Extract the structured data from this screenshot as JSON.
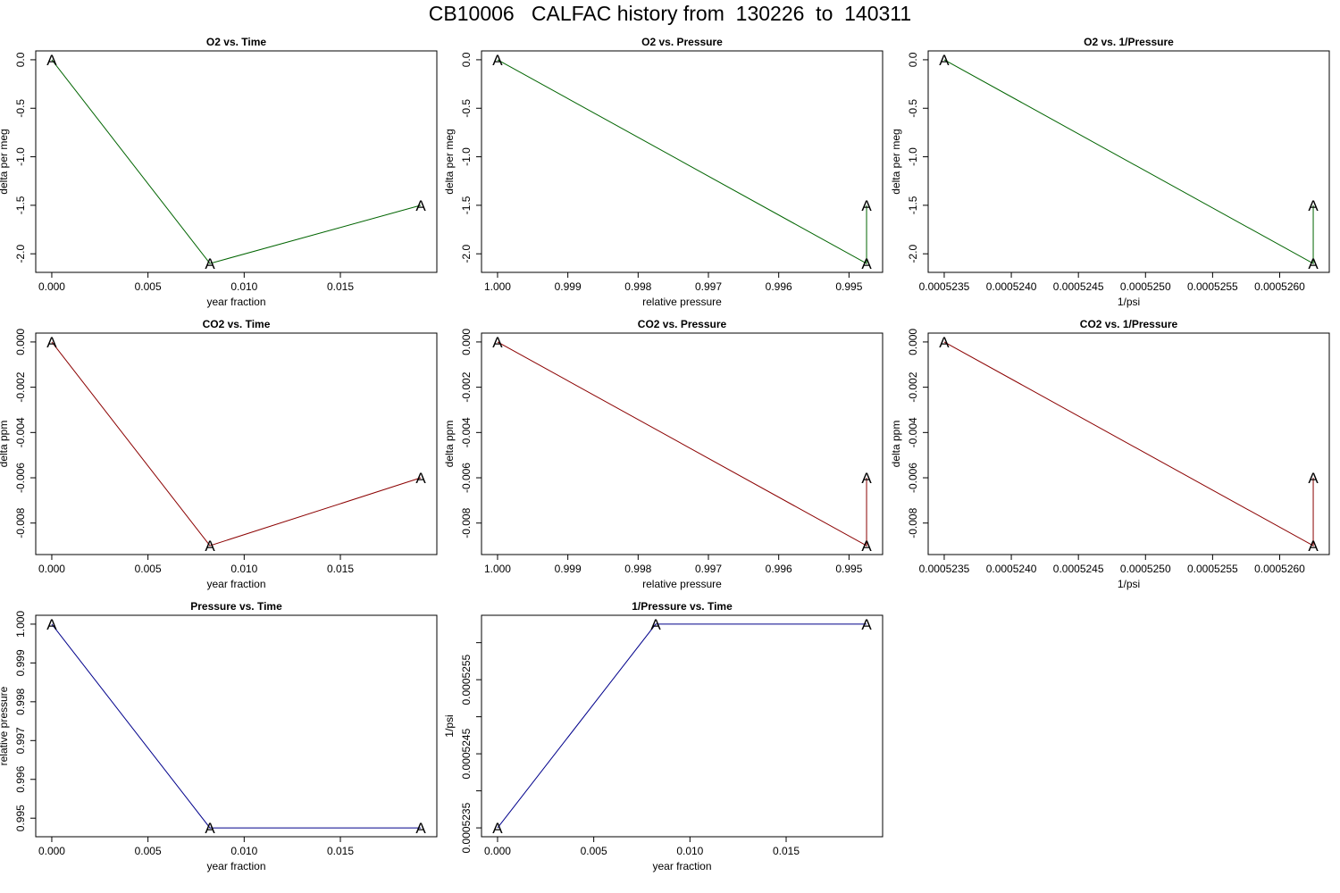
{
  "title": "CB10006   CALFAC history from  130226  to  140311",
  "chart_data": [
    {
      "type": "line",
      "title": "O2 vs. Time",
      "xlabel": "year fraction",
      "ylabel": "delta per meg",
      "color": "#006400",
      "marker": "A",
      "x": [
        0.0,
        0.00822,
        0.01918
      ],
      "y": [
        0.0,
        -2.1,
        -1.5
      ],
      "xlim": [
        0.0,
        0.01918
      ],
      "ylim": [
        -2.1,
        0.0
      ],
      "xreverse": false,
      "xticks": [
        0.0,
        0.005,
        0.01,
        0.015
      ],
      "xtick_labels": [
        "0.000",
        "0.005",
        "0.010",
        "0.015"
      ],
      "yticks": [
        0.0,
        -0.5,
        -1.0,
        -1.5,
        -2.0
      ],
      "ytick_labels": [
        "0.0",
        "-0.5",
        "-1.0",
        "-1.5",
        "-2.0"
      ]
    },
    {
      "type": "line",
      "title": "O2 vs. Pressure",
      "xlabel": "relative pressure",
      "ylabel": "delta per meg",
      "color": "#006400",
      "marker": "A",
      "x": [
        1.0,
        0.99475,
        0.99475
      ],
      "y": [
        0.0,
        -2.1,
        -1.5
      ],
      "xlim": [
        0.99475,
        1.0
      ],
      "ylim": [
        -2.1,
        0.0
      ],
      "xreverse": true,
      "xticks": [
        1.0,
        0.999,
        0.998,
        0.997,
        0.996,
        0.995
      ],
      "xtick_labels": [
        "1.000",
        "0.999",
        "0.998",
        "0.997",
        "0.996",
        "0.995"
      ],
      "yticks": [
        0.0,
        -0.5,
        -1.0,
        -1.5,
        -2.0
      ],
      "ytick_labels": [
        "0.0",
        "-0.5",
        "-1.0",
        "-1.5",
        "-2.0"
      ]
    },
    {
      "type": "line",
      "title": "O2 vs. 1/Pressure",
      "xlabel": "1/psi",
      "ylabel": "delta per meg",
      "color": "#006400",
      "marker": "A",
      "x": [
        0.0005235,
        0.00052625,
        0.00052625
      ],
      "y": [
        0.0,
        -2.1,
        -1.5
      ],
      "xlim": [
        0.0005235,
        0.00052625
      ],
      "ylim": [
        -2.1,
        0.0
      ],
      "xreverse": false,
      "xticks": [
        0.0005235,
        0.000524,
        0.0005245,
        0.000525,
        0.0005255,
        0.000526
      ],
      "xtick_labels": [
        "0.0005235",
        "0.0005240",
        "0.0005245",
        "0.0005250",
        "0.0005255",
        "0.0005260"
      ],
      "yticks": [
        0.0,
        -0.5,
        -1.0,
        -1.5,
        -2.0
      ],
      "ytick_labels": [
        "0.0",
        "-0.5",
        "-1.0",
        "-1.5",
        "-2.0"
      ]
    },
    {
      "type": "line",
      "title": "CO2 vs. Time",
      "xlabel": "year fraction",
      "ylabel": "delta ppm",
      "color": "#8B0000",
      "marker": "A",
      "x": [
        0.0,
        0.00822,
        0.01918
      ],
      "y": [
        0.0,
        -0.009,
        -0.006
      ],
      "xlim": [
        0.0,
        0.01918
      ],
      "ylim": [
        -0.009,
        0.0
      ],
      "xreverse": false,
      "xticks": [
        0.0,
        0.005,
        0.01,
        0.015
      ],
      "xtick_labels": [
        "0.000",
        "0.005",
        "0.010",
        "0.015"
      ],
      "yticks": [
        0.0,
        -0.002,
        -0.004,
        -0.006,
        -0.008
      ],
      "ytick_labels": [
        "0.000",
        "-0.002",
        "-0.004",
        "-0.006",
        "-0.008"
      ]
    },
    {
      "type": "line",
      "title": "CO2 vs. Pressure",
      "xlabel": "relative pressure",
      "ylabel": "delta ppm",
      "color": "#8B0000",
      "marker": "A",
      "x": [
        1.0,
        0.99475,
        0.99475
      ],
      "y": [
        0.0,
        -0.009,
        -0.006
      ],
      "xlim": [
        0.99475,
        1.0
      ],
      "ylim": [
        -0.009,
        0.0
      ],
      "xreverse": true,
      "xticks": [
        1.0,
        0.999,
        0.998,
        0.997,
        0.996,
        0.995
      ],
      "xtick_labels": [
        "1.000",
        "0.999",
        "0.998",
        "0.997",
        "0.996",
        "0.995"
      ],
      "yticks": [
        0.0,
        -0.002,
        -0.004,
        -0.006,
        -0.008
      ],
      "ytick_labels": [
        "0.000",
        "-0.002",
        "-0.004",
        "-0.006",
        "-0.008"
      ]
    },
    {
      "type": "line",
      "title": "CO2 vs. 1/Pressure",
      "xlabel": "1/psi",
      "ylabel": "delta ppm",
      "color": "#8B0000",
      "marker": "A",
      "x": [
        0.0005235,
        0.00052625,
        0.00052625
      ],
      "y": [
        0.0,
        -0.009,
        -0.006
      ],
      "xlim": [
        0.0005235,
        0.00052625
      ],
      "ylim": [
        -0.009,
        0.0
      ],
      "xreverse": false,
      "xticks": [
        0.0005235,
        0.000524,
        0.0005245,
        0.000525,
        0.0005255,
        0.000526
      ],
      "xtick_labels": [
        "0.0005235",
        "0.0005240",
        "0.0005245",
        "0.0005250",
        "0.0005255",
        "0.0005260"
      ],
      "yticks": [
        0.0,
        -0.002,
        -0.004,
        -0.006,
        -0.008
      ],
      "ytick_labels": [
        "0.000",
        "-0.002",
        "-0.004",
        "-0.006",
        "-0.008"
      ]
    },
    {
      "type": "line",
      "title": "Pressure vs. Time",
      "xlabel": "year fraction",
      "ylabel": "relative pressure",
      "color": "#00008B",
      "marker": "A",
      "x": [
        0.0,
        0.00822,
        0.01918
      ],
      "y": [
        1.0,
        0.99475,
        0.99475
      ],
      "xlim": [
        0.0,
        0.01918
      ],
      "ylim": [
        0.99475,
        1.0
      ],
      "xreverse": false,
      "xticks": [
        0.0,
        0.005,
        0.01,
        0.015
      ],
      "xtick_labels": [
        "0.000",
        "0.005",
        "0.010",
        "0.015"
      ],
      "yticks": [
        1.0,
        0.999,
        0.998,
        0.997,
        0.996,
        0.995
      ],
      "ytick_labels": [
        "1.000",
        "0.999",
        "0.998",
        "0.997",
        "0.996",
        "0.995"
      ]
    },
    {
      "type": "line",
      "title": "1/Pressure vs. Time",
      "xlabel": "year fraction",
      "ylabel": "1/psi",
      "color": "#00008B",
      "marker": "A",
      "x": [
        0.0,
        0.00822,
        0.01918
      ],
      "y": [
        0.0005235,
        0.00052625,
        0.00052625
      ],
      "xlim": [
        0.0,
        0.01918
      ],
      "ylim": [
        0.0005235,
        0.00052625
      ],
      "xreverse": false,
      "xticks": [
        0.0,
        0.005,
        0.01,
        0.015
      ],
      "xtick_labels": [
        "0.000",
        "0.005",
        "0.010",
        "0.015"
      ],
      "yticks": [
        0.0005235,
        0.000524,
        0.0005245,
        0.000525,
        0.0005255,
        0.000526
      ],
      "ytick_labels": [
        "0.0005235",
        "",
        "0.0005245",
        "",
        "0.0005255",
        ""
      ]
    }
  ]
}
